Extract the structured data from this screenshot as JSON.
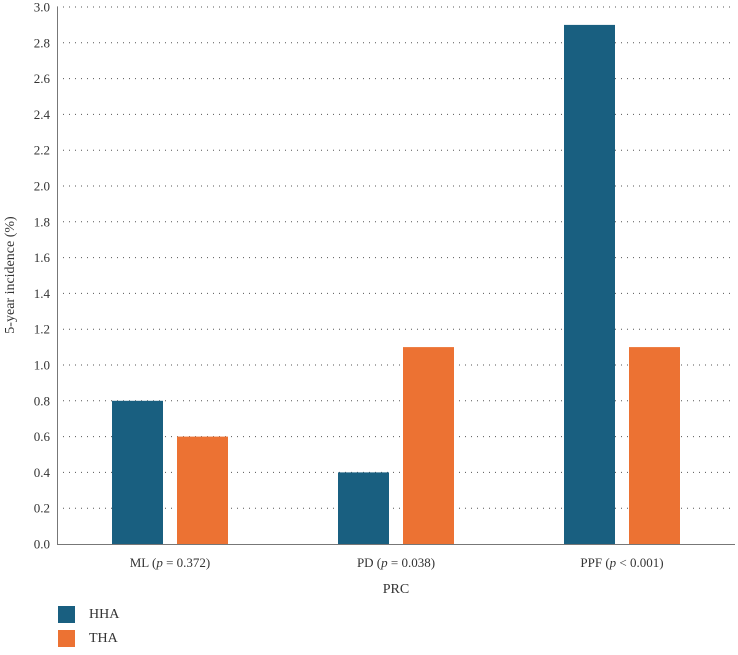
{
  "chart_data": {
    "type": "bar",
    "title": "",
    "xlabel": "PRC",
    "ylabel": "5-year incidence (%)",
    "ylim": [
      0,
      3.0
    ],
    "yticks": [
      "0.0",
      "0.2",
      "0.4",
      "0.6",
      "0.8",
      "1.0",
      "1.2",
      "1.4",
      "1.6",
      "1.8",
      "2.0",
      "2.2",
      "2.4",
      "2.6",
      "2.8",
      "3.0"
    ],
    "grid": true,
    "legend_position": "bottom-left",
    "categories": [
      {
        "name": "ML",
        "p_prefix": "p",
        "p_rest": " = 0.372"
      },
      {
        "name": "PD",
        "p_prefix": "p",
        "p_rest": " = 0.038"
      },
      {
        "name": "PPF",
        "p_prefix": "p",
        "p_rest": " < 0.001"
      }
    ],
    "series": [
      {
        "name": "HHA",
        "color": "#195f80",
        "values": [
          0.8,
          0.4,
          2.9
        ]
      },
      {
        "name": "THA",
        "color": "#ec7233",
        "values": [
          0.6,
          1.1,
          1.1
        ]
      }
    ]
  }
}
